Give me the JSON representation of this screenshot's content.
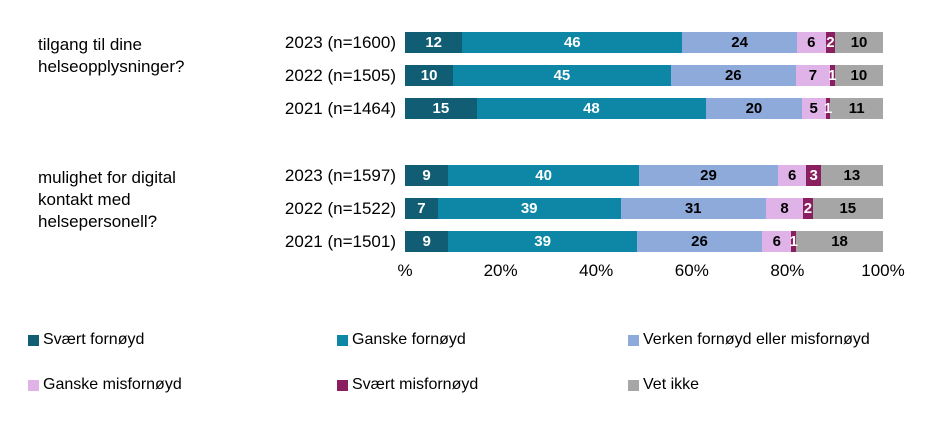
{
  "chart_data": {
    "type": "bar",
    "orientation": "horizontal",
    "stacked": true,
    "title": "",
    "xlabel": "",
    "ylabel": "",
    "x_axis": {
      "min": 0,
      "max": 100,
      "ticks": [
        "%",
        "20%",
        "40%",
        "60%",
        "80%",
        "100%"
      ]
    },
    "legend_position": "bottom",
    "series": [
      {
        "name": "Svært fornøyd",
        "color": "#115E74",
        "label_color": "#FFFFFF"
      },
      {
        "name": "Ganske fornøyd",
        "color": "#0E86A6",
        "label_color": "#FFFFFF"
      },
      {
        "name": "Verken fornøyd eller misfornøyd",
        "color": "#8EAADB",
        "label_color": "#000000"
      },
      {
        "name": "Ganske misfornøyd",
        "color": "#E0B3E8",
        "label_color": "#000000"
      },
      {
        "name": "Svært misfornøyd",
        "color": "#8A1F5F",
        "label_color": "#FFFFFF"
      },
      {
        "name": "Vet ikke",
        "color": "#A6A6A6",
        "label_color": "#000000"
      }
    ],
    "groups": [
      {
        "label": "tilgang til dine helseopplysninger?",
        "rows": [
          {
            "label": "2023 (n=1600)",
            "values": [
              12,
              46,
              24,
              6,
              2,
              10
            ]
          },
          {
            "label": "2022 (n=1505)",
            "values": [
              10,
              45,
              26,
              7,
              1,
              10
            ]
          },
          {
            "label": "2021 (n=1464)",
            "values": [
              15,
              48,
              20,
              5,
              1,
              11
            ]
          }
        ]
      },
      {
        "label": "mulighet for digital kontakt med helsepersonell?",
        "rows": [
          {
            "label": "2023 (n=1597)",
            "values": [
              9,
              40,
              29,
              6,
              3,
              13
            ]
          },
          {
            "label": "2022 (n=1522)",
            "values": [
              7,
              39,
              31,
              8,
              2,
              15
            ]
          },
          {
            "label": "2021 (n=1501)",
            "values": [
              9,
              39,
              26,
              6,
              1,
              18
            ]
          }
        ]
      }
    ]
  }
}
